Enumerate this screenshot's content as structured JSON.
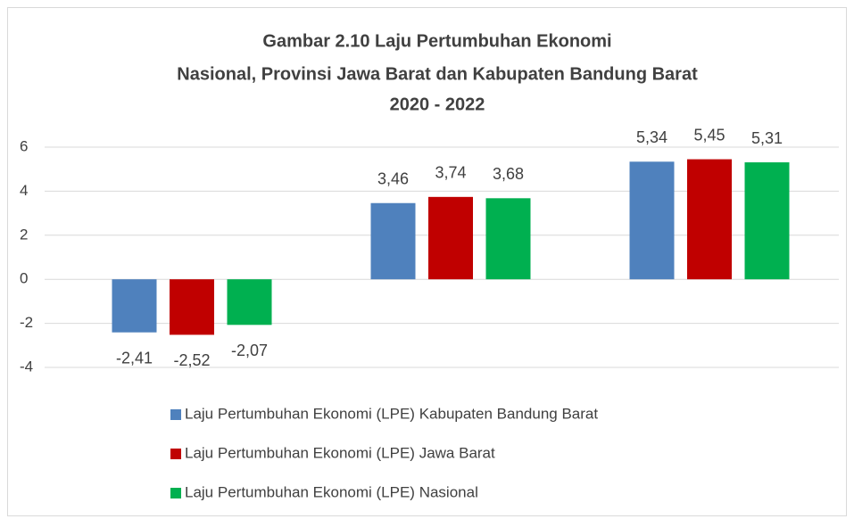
{
  "chart_data": {
    "type": "bar",
    "title": [
      "Gambar 2.10  Laju Pertumbuhan Ekonomi",
      "Nasional, Provinsi Jawa Barat dan Kabupaten Bandung Barat",
      "2020 - 2022"
    ],
    "categories": [
      null,
      null,
      null
    ],
    "series": [
      {
        "name": "Laju Pertumbuhan Ekonomi (LPE) Kabupaten Bandung Barat",
        "color": "#4f81bd",
        "values": [
          -2.41,
          3.46,
          5.34
        ],
        "value_labels": [
          "-2,41",
          "3,46",
          "5,34"
        ]
      },
      {
        "name": "Laju Pertumbuhan Ekonomi (LPE) Jawa Barat",
        "color": "#c00000",
        "values": [
          -2.52,
          3.74,
          5.45
        ],
        "value_labels": [
          "-2,52",
          "3,74",
          "5,45"
        ]
      },
      {
        "name": "Laju Pertumbuhan Ekonomi (LPE) Nasional",
        "color": "#00b050",
        "values": [
          -2.07,
          3.68,
          5.31
        ],
        "value_labels": [
          "-2,07",
          "3,68",
          "5,31"
        ]
      }
    ],
    "ylim": [
      -4,
      6
    ],
    "yticks": [
      -4,
      -2,
      0,
      2,
      4,
      6
    ],
    "grid": true,
    "legend": "bottom"
  }
}
